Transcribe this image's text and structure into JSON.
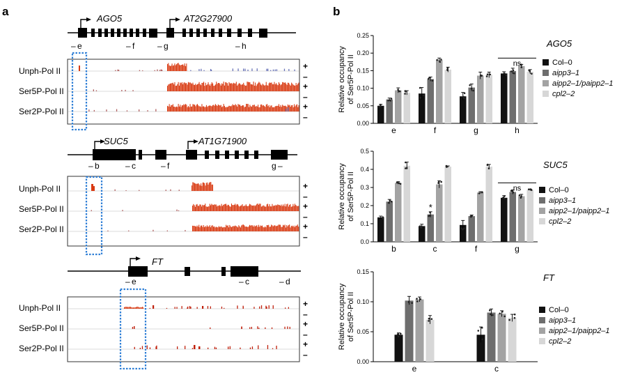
{
  "panel_labels": {
    "a": "a",
    "b": "b"
  },
  "track_labels": [
    "Unph-Pol II",
    "Ser5P-Pol II",
    "Ser2P-Pol II"
  ],
  "strand": {
    "plus": "+",
    "minus": "–"
  },
  "gene_models": {
    "ago5": {
      "genes": [
        "AGO5",
        "AT2G27900"
      ],
      "primers": [
        "e",
        "f",
        "g",
        "h"
      ]
    },
    "suc5": {
      "genes": [
        "SUC5",
        "AT1G71900"
      ],
      "primers": [
        "b",
        "c",
        "f",
        "g"
      ]
    },
    "ft": {
      "genes": [
        "FT"
      ],
      "primers": [
        "e",
        "c",
        "d"
      ]
    }
  },
  "colors": {
    "signal": "#d93a12",
    "signal_dark": "#c0200c",
    "highlight_box": "#2f7fd6",
    "genotypes": [
      "#111111",
      "#6e6e6e",
      "#a3a3a3",
      "#d7d7d7"
    ]
  },
  "chart_data": [
    {
      "type": "bar",
      "title": "AGO5",
      "ylabel": "Relative occupancy of Ser5P-Pol II",
      "categories": [
        "e",
        "f",
        "g",
        "h"
      ],
      "ylim": [
        0,
        0.25
      ],
      "yticks": [
        "0.00",
        "0.05",
        "0.10",
        "0.15",
        "0.20",
        "0.25"
      ],
      "series": [
        {
          "name": "Col–0",
          "values": [
            0.05,
            0.085,
            0.077,
            0.142
          ],
          "errors": [
            0.004,
            0.017,
            0.011,
            0.005
          ]
        },
        {
          "name": "aipp3–1",
          "values": [
            0.068,
            0.126,
            0.102,
            0.149
          ],
          "errors": [
            0.004,
            0.006,
            0.01,
            0.008
          ]
        },
        {
          "name": "aipp2–1/paipp2–1",
          "values": [
            0.094,
            0.18,
            0.136,
            0.163
          ],
          "errors": [
            0.007,
            0.006,
            0.01,
            0.005
          ]
        },
        {
          "name": "cpl2–2",
          "values": [
            0.087,
            0.153,
            0.138,
            0.147
          ],
          "errors": [
            0.006,
            0.007,
            0.008,
            0.006
          ]
        }
      ],
      "annotations": [
        {
          "category": "h",
          "text": "ns"
        }
      ]
    },
    {
      "type": "bar",
      "title": "SUC5",
      "ylabel": "Relative occupancy of Ser5P-Pol II",
      "categories": [
        "b",
        "c",
        "f",
        "g"
      ],
      "ylim": [
        0,
        0.5
      ],
      "yticks": [
        "0.0",
        "0.1",
        "0.2",
        "0.3",
        "0.4",
        "0.5"
      ],
      "series": [
        {
          "name": "Col–0",
          "values": [
            0.135,
            0.087,
            0.093,
            0.243
          ],
          "errors": [
            0.007,
            0.01,
            0.025,
            0.012
          ]
        },
        {
          "name": "aipp3–1",
          "values": [
            0.222,
            0.151,
            0.142,
            0.275
          ],
          "errors": [
            0.012,
            0.015,
            0.006,
            0.012
          ]
        },
        {
          "name": "aipp2–1/paipp2–1",
          "values": [
            0.325,
            0.317,
            0.272,
            0.252
          ],
          "errors": [
            0.007,
            0.02,
            0.005,
            0.01
          ]
        },
        {
          "name": "cpl2–2",
          "values": [
            0.42,
            0.415,
            0.415,
            0.287
          ],
          "errors": [
            0.02,
            0.004,
            0.012,
            0.004
          ]
        }
      ],
      "annotations": [
        {
          "category": "c",
          "text": "*"
        },
        {
          "category": "g",
          "text": "ns"
        }
      ]
    },
    {
      "type": "bar",
      "title": "FT",
      "ylabel": "Relative occupancy of Ser5P-Pol II",
      "categories": [
        "e",
        "c"
      ],
      "ylim": [
        0,
        0.15
      ],
      "yticks": [
        "0.00",
        "0.05",
        "0.10",
        "0.15"
      ],
      "series": [
        {
          "name": "Col–0",
          "values": [
            0.045,
            0.045
          ],
          "errors": [
            0.003,
            0.013
          ]
        },
        {
          "name": "aipp3–1",
          "values": [
            0.102,
            0.082
          ],
          "errors": [
            0.007,
            0.006
          ]
        },
        {
          "name": "aipp2–1/paipp2–1",
          "values": [
            0.104,
            0.08
          ],
          "errors": [
            0.004,
            0.005
          ]
        },
        {
          "name": "cpl2–2",
          "values": [
            0.07,
            0.073
          ],
          "errors": [
            0.007,
            0.006
          ]
        }
      ],
      "annotations": []
    }
  ]
}
